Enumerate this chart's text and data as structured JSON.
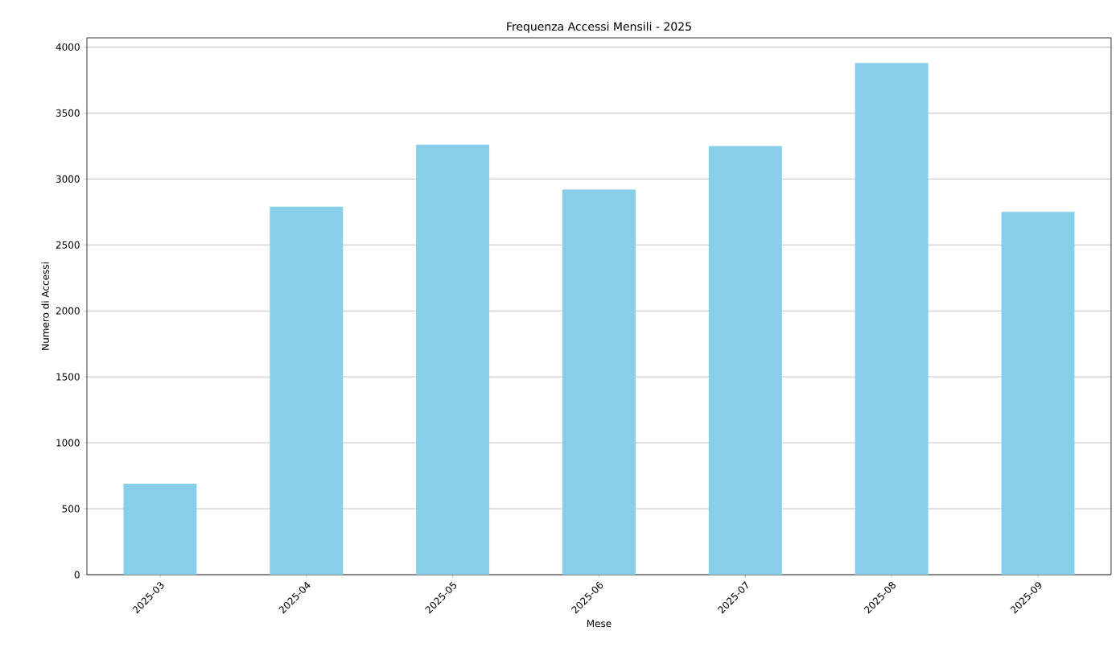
{
  "chart_data": {
    "type": "bar",
    "title": "Frequenza Accessi Mensili - 2025",
    "xlabel": "Mese",
    "ylabel": "Numero di Accessi",
    "categories": [
      "2025-03",
      "2025-04",
      "2025-05",
      "2025-06",
      "2025-07",
      "2025-08",
      "2025-09"
    ],
    "values": [
      690,
      2790,
      3260,
      2920,
      3250,
      3880,
      2750
    ],
    "color": "#87ceeb",
    "ylim": [
      0,
      4070
    ],
    "yticks": [
      0,
      500,
      1000,
      1500,
      2000,
      2500,
      3000,
      3500,
      4000
    ],
    "grid": "y"
  }
}
